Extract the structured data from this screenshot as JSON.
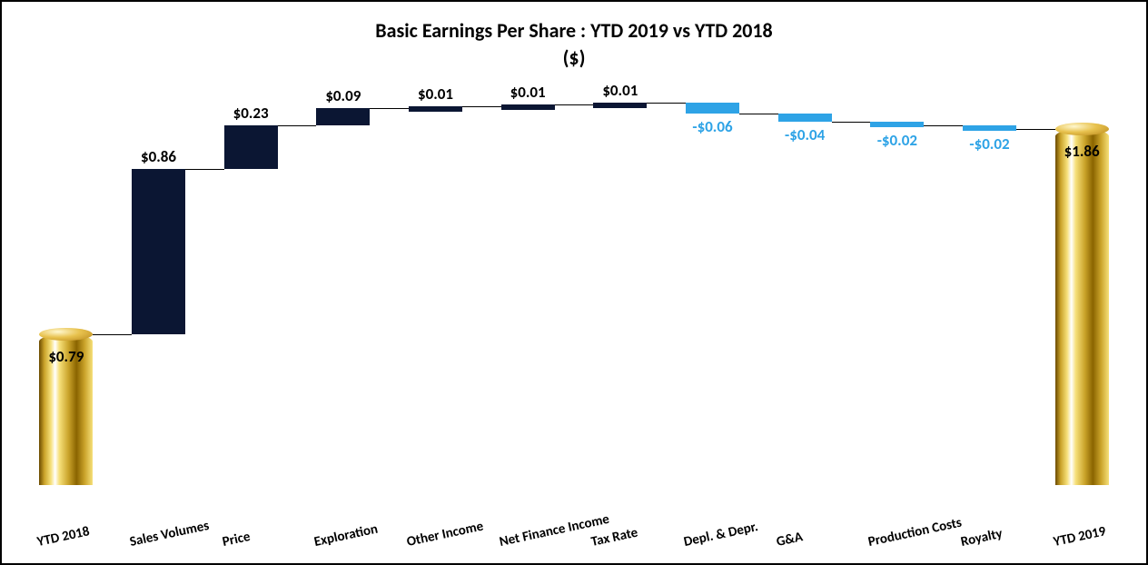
{
  "chart": {
    "type": "waterfall",
    "title_line1": "Basic Earnings Per Share : YTD 2019 vs YTD 2018",
    "title_line2": "($)",
    "title_fontsize": 22,
    "title_color": "#000000",
    "background_color": "#ffffff",
    "y_min": 0,
    "y_max": 2.05,
    "bar_width_ratio": 0.58,
    "value_fontsize": 17,
    "xlabel_fontsize": 15,
    "xlabel_rotation_deg": -12,
    "colors": {
      "endpoint_gradient": [
        "#6b4a00",
        "#caa32a",
        "#f6e07a",
        "#ffffff",
        "#f6e07a",
        "#caa32a",
        "#8a6400"
      ],
      "positive": "#0b1633",
      "negative": "#2ea3e6",
      "connector": "#000000",
      "value_text": "#000000",
      "negative_value_text": "#2ea3e6"
    },
    "items": [
      {
        "label": "YTD 2018",
        "value": 0.79,
        "display": "$0.79",
        "kind": "endpoint"
      },
      {
        "label": "Sales Volumes",
        "value": 0.86,
        "display": "$0.86",
        "kind": "positive"
      },
      {
        "label": "Price",
        "value": 0.23,
        "display": "$0.23",
        "kind": "positive"
      },
      {
        "label": "Exploration",
        "value": 0.09,
        "display": "$0.09",
        "kind": "positive"
      },
      {
        "label": "Other Income",
        "value": 0.01,
        "display": "$0.01",
        "kind": "positive"
      },
      {
        "label": "Net Finance Income",
        "value": 0.01,
        "display": "$0.01",
        "kind": "positive"
      },
      {
        "label": "Tax Rate",
        "value": 0.01,
        "display": "$0.01",
        "kind": "positive"
      },
      {
        "label": "Depl. & Depr.",
        "value": -0.06,
        "display": "-$0.06",
        "kind": "negative"
      },
      {
        "label": "G&A",
        "value": -0.04,
        "display": "-$0.04",
        "kind": "negative"
      },
      {
        "label": "Production Costs",
        "value": -0.02,
        "display": "-$0.02",
        "kind": "negative"
      },
      {
        "label": "Royalty",
        "value": -0.02,
        "display": "-$0.02",
        "kind": "negative"
      },
      {
        "label": "YTD 2019",
        "value": 1.86,
        "display": "$1.86",
        "kind": "endpoint"
      }
    ]
  }
}
